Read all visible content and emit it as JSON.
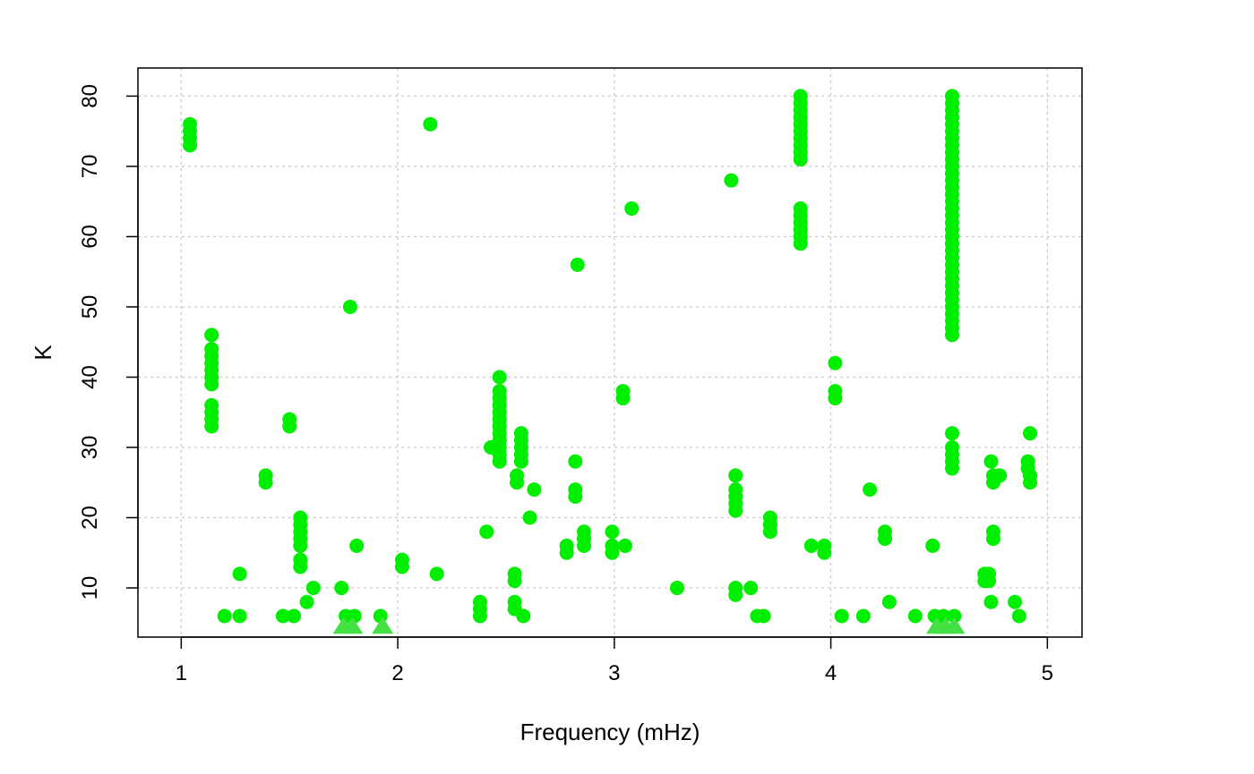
{
  "chart_data": {
    "type": "scatter",
    "title": "",
    "xlabel": "Frequency (mHz)",
    "ylabel": "K",
    "xlim": [
      0.8,
      5.16
    ],
    "ylim": [
      3,
      84
    ],
    "x_ticks": [
      1,
      2,
      3,
      4,
      5
    ],
    "y_ticks": [
      10,
      20,
      30,
      40,
      50,
      60,
      70,
      80
    ],
    "grid": true,
    "legend": "none",
    "colors": {
      "point": "#00ee00",
      "grid": "#cccccc",
      "axis": "#000000"
    },
    "points": [
      [
        1.04,
        73
      ],
      [
        1.04,
        74
      ],
      [
        1.04,
        75
      ],
      [
        1.04,
        76
      ],
      [
        1.14,
        33
      ],
      [
        1.14,
        34
      ],
      [
        1.14,
        35
      ],
      [
        1.14,
        36
      ],
      [
        1.14,
        39
      ],
      [
        1.14,
        40
      ],
      [
        1.14,
        41
      ],
      [
        1.14,
        42
      ],
      [
        1.14,
        43
      ],
      [
        1.14,
        44
      ],
      [
        1.14,
        46
      ],
      [
        1.2,
        6
      ],
      [
        1.27,
        6
      ],
      [
        1.27,
        12
      ],
      [
        1.39,
        25
      ],
      [
        1.39,
        26
      ],
      [
        1.47,
        6
      ],
      [
        1.5,
        33
      ],
      [
        1.5,
        34
      ],
      [
        1.52,
        6
      ],
      [
        1.55,
        13
      ],
      [
        1.55,
        14
      ],
      [
        1.55,
        16
      ],
      [
        1.55,
        17
      ],
      [
        1.55,
        18
      ],
      [
        1.55,
        19
      ],
      [
        1.55,
        20
      ],
      [
        1.58,
        8
      ],
      [
        1.61,
        10
      ],
      [
        1.74,
        10
      ],
      [
        1.76,
        6
      ],
      [
        1.78,
        50
      ],
      [
        1.8,
        6
      ],
      [
        1.81,
        16
      ],
      [
        1.92,
        6
      ],
      [
        2.02,
        13
      ],
      [
        2.02,
        14
      ],
      [
        2.15,
        76
      ],
      [
        2.18,
        12
      ],
      [
        2.38,
        6
      ],
      [
        2.38,
        7
      ],
      [
        2.38,
        8
      ],
      [
        2.41,
        18
      ],
      [
        2.43,
        30
      ],
      [
        2.47,
        28
      ],
      [
        2.47,
        29
      ],
      [
        2.47,
        30
      ],
      [
        2.47,
        31
      ],
      [
        2.47,
        32
      ],
      [
        2.47,
        33
      ],
      [
        2.47,
        34
      ],
      [
        2.47,
        35
      ],
      [
        2.47,
        36
      ],
      [
        2.47,
        37
      ],
      [
        2.47,
        38
      ],
      [
        2.47,
        40
      ],
      [
        2.54,
        7
      ],
      [
        2.54,
        8
      ],
      [
        2.54,
        11
      ],
      [
        2.54,
        12
      ],
      [
        2.55,
        25
      ],
      [
        2.55,
        26
      ],
      [
        2.57,
        28
      ],
      [
        2.57,
        29
      ],
      [
        2.57,
        30
      ],
      [
        2.57,
        31
      ],
      [
        2.57,
        32
      ],
      [
        2.58,
        6
      ],
      [
        2.61,
        20
      ],
      [
        2.63,
        24
      ],
      [
        2.78,
        15
      ],
      [
        2.78,
        16
      ],
      [
        2.82,
        23
      ],
      [
        2.82,
        24
      ],
      [
        2.82,
        28
      ],
      [
        2.83,
        56
      ],
      [
        2.86,
        16
      ],
      [
        2.86,
        17
      ],
      [
        2.86,
        18
      ],
      [
        2.99,
        15
      ],
      [
        2.99,
        16
      ],
      [
        2.99,
        18
      ],
      [
        3.04,
        37
      ],
      [
        3.04,
        38
      ],
      [
        3.05,
        16
      ],
      [
        3.08,
        64
      ],
      [
        3.29,
        10
      ],
      [
        3.54,
        68
      ],
      [
        3.56,
        9
      ],
      [
        3.56,
        10
      ],
      [
        3.56,
        21
      ],
      [
        3.56,
        22
      ],
      [
        3.56,
        23
      ],
      [
        3.56,
        24
      ],
      [
        3.56,
        26
      ],
      [
        3.63,
        10
      ],
      [
        3.66,
        6
      ],
      [
        3.69,
        6
      ],
      [
        3.72,
        18
      ],
      [
        3.72,
        19
      ],
      [
        3.72,
        20
      ],
      [
        3.86,
        59
      ],
      [
        3.86,
        60
      ],
      [
        3.86,
        61
      ],
      [
        3.86,
        62
      ],
      [
        3.86,
        63
      ],
      [
        3.86,
        64
      ],
      [
        3.86,
        71
      ],
      [
        3.86,
        72
      ],
      [
        3.86,
        73
      ],
      [
        3.86,
        74
      ],
      [
        3.86,
        75
      ],
      [
        3.86,
        76
      ],
      [
        3.86,
        77
      ],
      [
        3.86,
        78
      ],
      [
        3.86,
        79
      ],
      [
        3.86,
        80
      ],
      [
        3.91,
        16
      ],
      [
        3.97,
        15
      ],
      [
        3.97,
        16
      ],
      [
        4.02,
        37
      ],
      [
        4.02,
        38
      ],
      [
        4.02,
        42
      ],
      [
        4.05,
        6
      ],
      [
        4.15,
        6
      ],
      [
        4.18,
        24
      ],
      [
        4.25,
        17
      ],
      [
        4.25,
        18
      ],
      [
        4.27,
        8
      ],
      [
        4.39,
        6
      ],
      [
        4.47,
        16
      ],
      [
        4.48,
        6
      ],
      [
        4.52,
        6
      ],
      [
        4.56,
        27
      ],
      [
        4.56,
        28
      ],
      [
        4.56,
        29
      ],
      [
        4.56,
        30
      ],
      [
        4.56,
        32
      ],
      [
        4.57,
        6
      ],
      [
        4.56,
        46
      ],
      [
        4.56,
        47
      ],
      [
        4.56,
        48
      ],
      [
        4.56,
        49
      ],
      [
        4.56,
        50
      ],
      [
        4.56,
        51
      ],
      [
        4.56,
        52
      ],
      [
        4.56,
        53
      ],
      [
        4.56,
        54
      ],
      [
        4.56,
        55
      ],
      [
        4.56,
        56
      ],
      [
        4.56,
        57
      ],
      [
        4.56,
        58
      ],
      [
        4.56,
        59
      ],
      [
        4.56,
        60
      ],
      [
        4.56,
        61
      ],
      [
        4.56,
        62
      ],
      [
        4.56,
        63
      ],
      [
        4.56,
        64
      ],
      [
        4.56,
        65
      ],
      [
        4.56,
        66
      ],
      [
        4.56,
        67
      ],
      [
        4.56,
        68
      ],
      [
        4.56,
        69
      ],
      [
        4.56,
        70
      ],
      [
        4.56,
        71
      ],
      [
        4.56,
        72
      ],
      [
        4.56,
        73
      ],
      [
        4.56,
        74
      ],
      [
        4.56,
        75
      ],
      [
        4.56,
        76
      ],
      [
        4.56,
        77
      ],
      [
        4.56,
        78
      ],
      [
        4.56,
        79
      ],
      [
        4.56,
        80
      ],
      [
        4.71,
        11
      ],
      [
        4.71,
        12
      ],
      [
        4.73,
        11
      ],
      [
        4.73,
        12
      ],
      [
        4.74,
        8
      ],
      [
        4.74,
        28
      ],
      [
        4.75,
        17
      ],
      [
        4.75,
        18
      ],
      [
        4.75,
        25
      ],
      [
        4.75,
        26
      ],
      [
        4.78,
        26
      ],
      [
        4.85,
        8
      ],
      [
        4.87,
        6
      ],
      [
        4.91,
        27
      ],
      [
        4.91,
        28
      ],
      [
        4.92,
        25
      ],
      [
        4.92,
        26
      ],
      [
        4.92,
        32
      ]
    ],
    "triangles": [
      [
        1.75,
        4.5
      ],
      [
        1.79,
        4.5
      ],
      [
        1.93,
        4.5
      ],
      [
        4.49,
        4.5
      ],
      [
        4.53,
        4.5
      ],
      [
        4.57,
        4.5
      ]
    ]
  }
}
